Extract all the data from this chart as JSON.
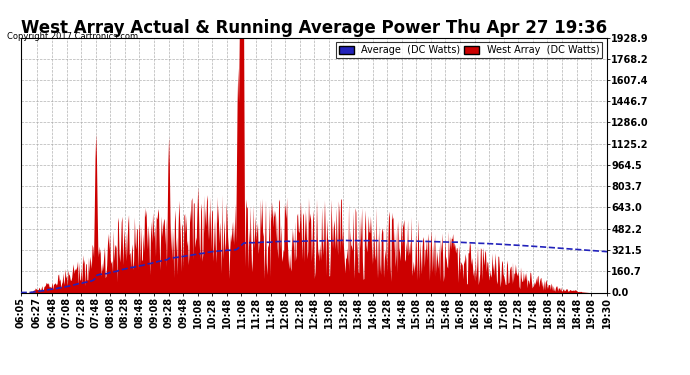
{
  "title": "West Array Actual & Running Average Power Thu Apr 27 19:36",
  "copyright": "Copyright 2017 Cartronics.com",
  "legend_avg": "Average  (DC Watts)",
  "legend_west": "West Array  (DC Watts)",
  "ymin": 0.0,
  "ymax": 1928.9,
  "yticks": [
    0.0,
    160.7,
    321.5,
    482.2,
    643.0,
    803.7,
    964.5,
    1125.2,
    1286.0,
    1446.7,
    1607.4,
    1768.2,
    1928.9
  ],
  "bg_color": "#ffffff",
  "plot_bg_color": "#ffffff",
  "bar_color": "#cc0000",
  "avg_line_color": "#2222bb",
  "grid_color": "#aaaaaa",
  "title_fontsize": 12,
  "tick_fontsize": 7,
  "xtick_labels": [
    "06:05",
    "06:27",
    "06:48",
    "07:08",
    "07:28",
    "07:48",
    "08:08",
    "08:28",
    "08:48",
    "09:08",
    "09:28",
    "09:48",
    "10:08",
    "10:28",
    "10:48",
    "11:08",
    "11:28",
    "11:48",
    "12:08",
    "12:28",
    "12:48",
    "13:08",
    "13:28",
    "13:48",
    "14:08",
    "14:28",
    "14:48",
    "15:08",
    "15:28",
    "15:48",
    "16:08",
    "16:28",
    "16:48",
    "17:08",
    "17:28",
    "17:48",
    "18:08",
    "18:28",
    "18:48",
    "19:08",
    "19:30"
  ]
}
